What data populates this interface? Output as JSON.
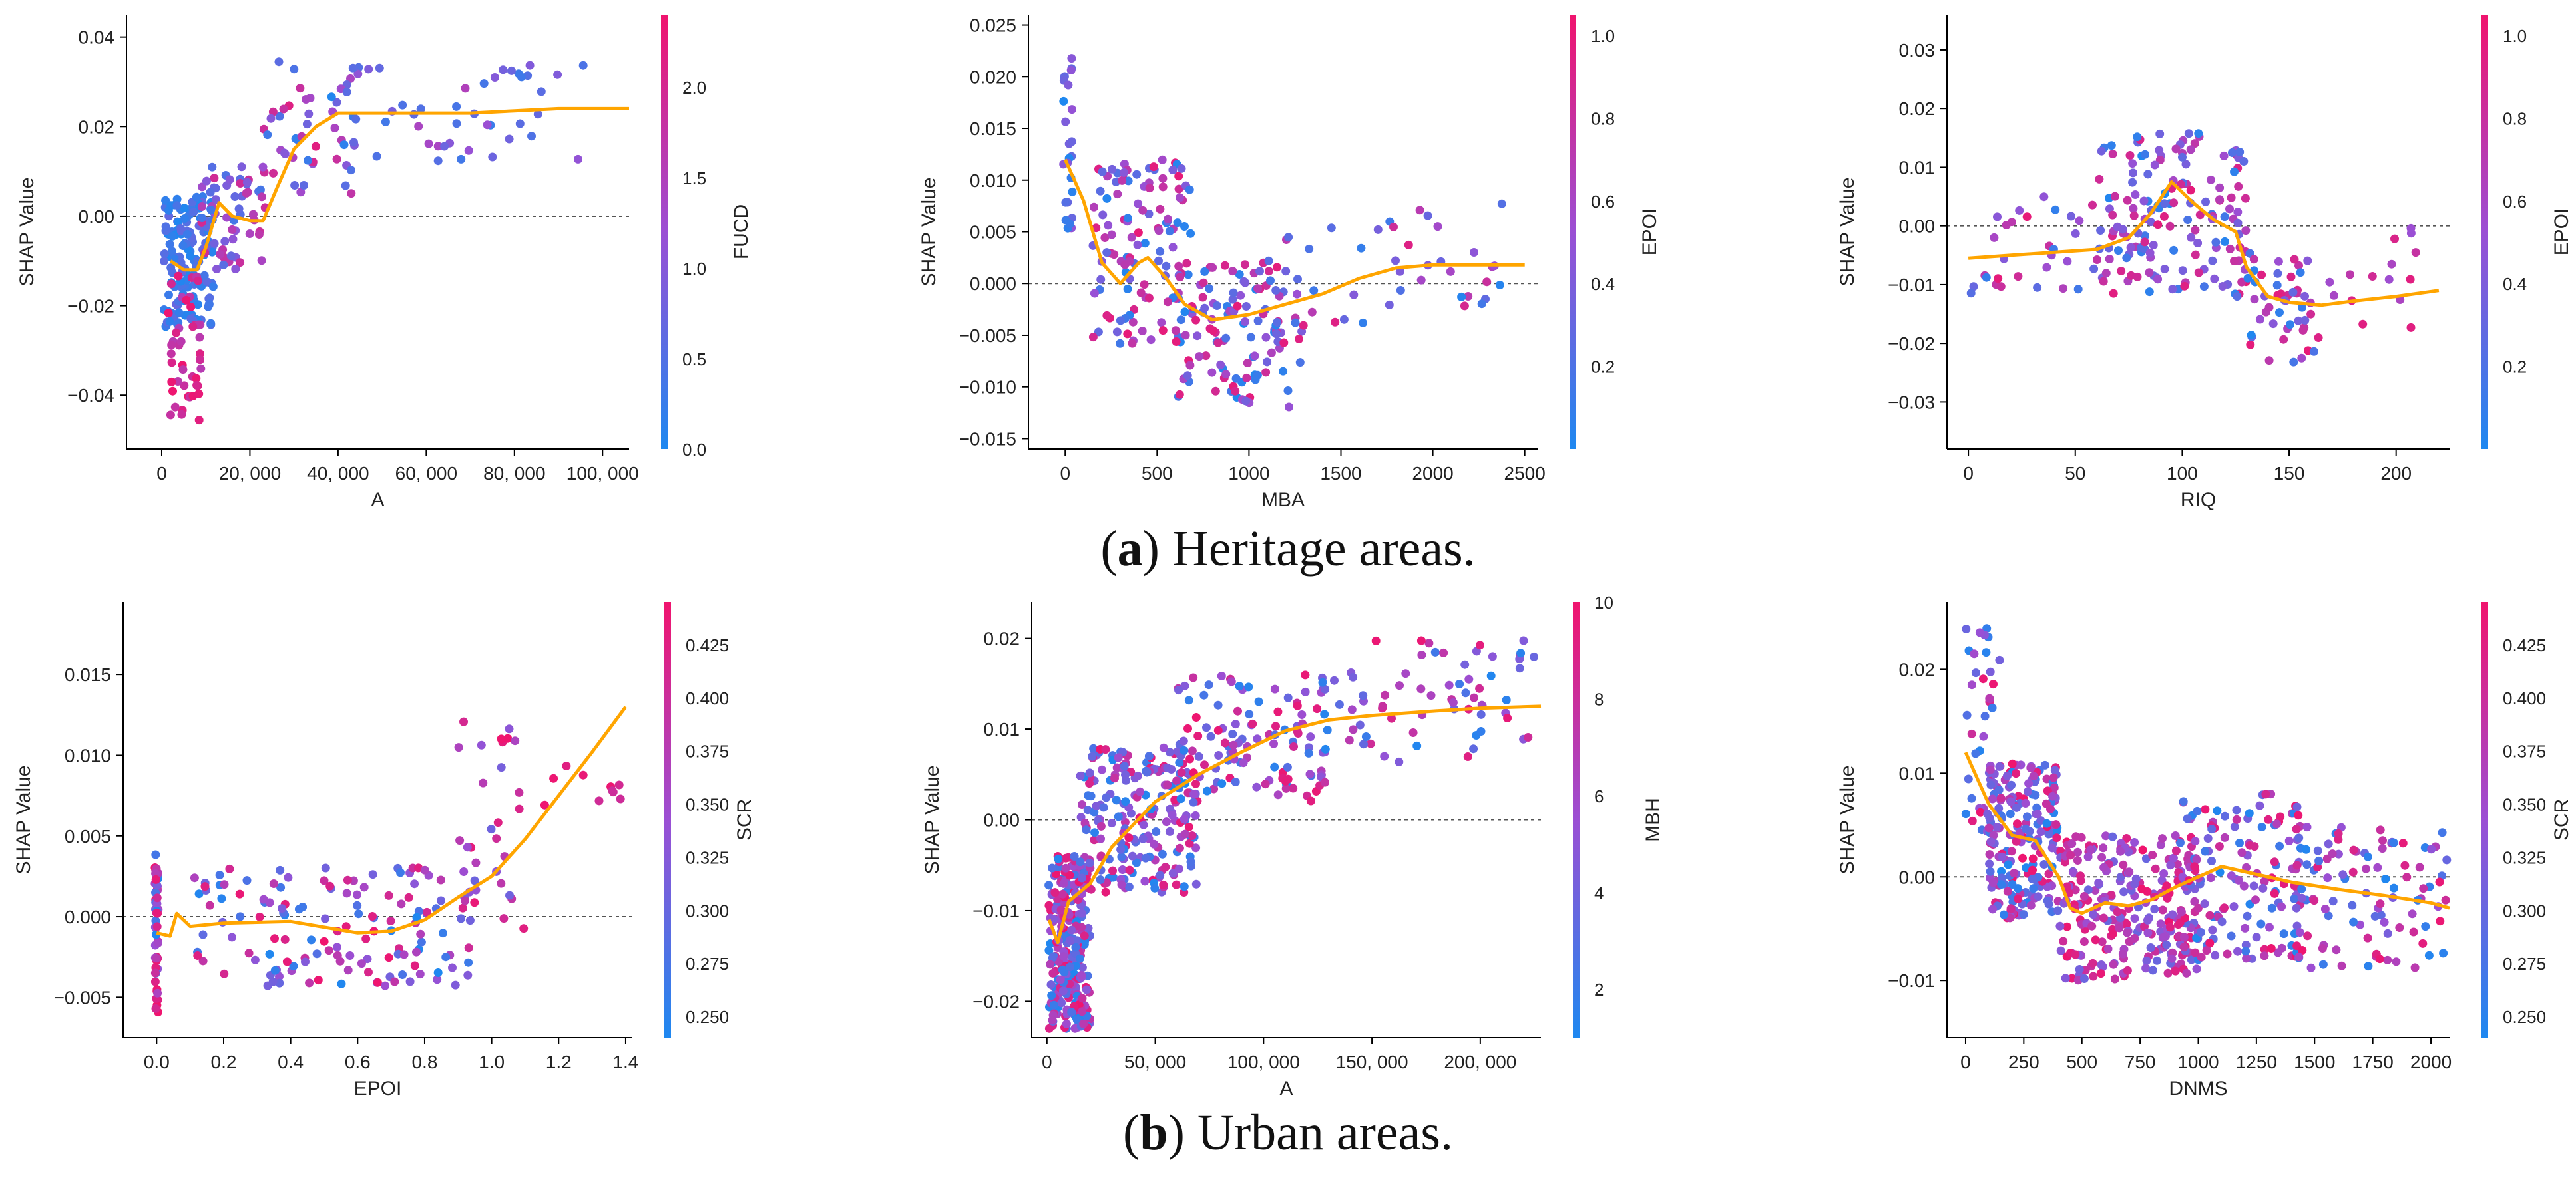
{
  "colors": {
    "low": "#1e88f0",
    "mid": "#9b4fd4",
    "high": "#f0146e",
    "trend": "#ffa500",
    "axis": "#000000",
    "zeroline": "#555555"
  },
  "captions": {
    "a": {
      "label": "a",
      "text": "Heritage areas."
    },
    "b": {
      "label": "b",
      "text": "Urban areas."
    }
  },
  "chart_data": [
    {
      "type": "scatter",
      "id": "heritage-A",
      "group": "a",
      "xlabel": "A",
      "ylabel": "SHAP Value",
      "colorbar_label": "FUCD",
      "xlim": [
        -8000,
        106000
      ],
      "ylim": [
        -0.052,
        0.045
      ],
      "xticks": [
        0,
        20000,
        40000,
        60000,
        80000,
        100000
      ],
      "xtick_labels": [
        "0",
        "20, 000",
        "40, 000",
        "60, 000",
        "80, 000",
        "100, 000"
      ],
      "yticks": [
        -0.04,
        -0.02,
        0.0,
        0.02,
        0.04
      ],
      "ytick_labels": [
        "−0.04",
        "−0.02",
        "0.00",
        "0.02",
        "0.04"
      ],
      "cbar_range": [
        0,
        2.4
      ],
      "cbar_ticks": [
        0.0,
        0.5,
        1.0,
        1.5,
        2.0
      ],
      "cbar_tick_labels": [
        "0.0",
        "0.5",
        "1.0",
        "1.5",
        "2.0"
      ],
      "trend": [
        [
          2000,
          -0.01
        ],
        [
          5000,
          -0.012
        ],
        [
          8000,
          -0.012
        ],
        [
          10000,
          -0.007
        ],
        [
          13000,
          0.003
        ],
        [
          16000,
          0.0
        ],
        [
          20000,
          -0.001
        ],
        [
          23000,
          -0.001
        ],
        [
          26000,
          0.006
        ],
        [
          30000,
          0.015
        ],
        [
          35000,
          0.02
        ],
        [
          40000,
          0.023
        ],
        [
          50000,
          0.023
        ],
        [
          60000,
          0.023
        ],
        [
          70000,
          0.023
        ],
        [
          80000,
          0.0235
        ],
        [
          90000,
          0.024
        ],
        [
          100000,
          0.024
        ],
        [
          106000,
          0.024
        ]
      ],
      "clusters": [
        {
          "n": 150,
          "x": [
            500,
            12000
          ],
          "y": [
            -0.025,
            0.005
          ],
          "c": [
            0.0,
            0.7
          ]
        },
        {
          "n": 45,
          "x": [
            1500,
            9000
          ],
          "y": [
            -0.046,
            -0.012
          ],
          "c": [
            1.5,
            2.4
          ]
        },
        {
          "n": 60,
          "x": [
            9000,
            24000
          ],
          "y": [
            -0.012,
            0.012
          ],
          "c": [
            0.3,
            2.0
          ]
        },
        {
          "n": 45,
          "x": [
            23000,
            44000
          ],
          "y": [
            0.005,
            0.035
          ],
          "c": [
            0.0,
            2.2
          ]
        },
        {
          "n": 45,
          "x": [
            42000,
            96000
          ],
          "y": [
            0.012,
            0.034
          ],
          "c": [
            0.0,
            1.5
          ]
        }
      ]
    },
    {
      "type": "scatter",
      "id": "heritage-MBA",
      "group": "a",
      "xlabel": "MBA",
      "ylabel": "SHAP Value",
      "colorbar_label": "EPOI",
      "xlim": [
        -200,
        2570
      ],
      "ylim": [
        -0.016,
        0.026
      ],
      "xticks": [
        0,
        500,
        1000,
        1500,
        2000,
        2500
      ],
      "xtick_labels": [
        "0",
        "500",
        "1000",
        "1500",
        "2000",
        "2500"
      ],
      "yticks": [
        -0.015,
        -0.01,
        -0.005,
        0.0,
        0.005,
        0.01,
        0.015,
        0.02,
        0.025
      ],
      "ytick_labels": [
        "−0.015",
        "−0.010",
        "−0.005",
        "0.000",
        "0.005",
        "0.010",
        "0.015",
        "0.020",
        "0.025"
      ],
      "cbar_range": [
        0,
        1.05
      ],
      "cbar_ticks": [
        0.2,
        0.4,
        0.6,
        0.8,
        1.0
      ],
      "cbar_tick_labels": [
        "0.2",
        "0.4",
        "0.6",
        "0.8",
        "1.0"
      ],
      "trend": [
        [
          0,
          0.012
        ],
        [
          100,
          0.008
        ],
        [
          200,
          0.002
        ],
        [
          300,
          0.0
        ],
        [
          400,
          0.002
        ],
        [
          450,
          0.0025
        ],
        [
          550,
          0.0005
        ],
        [
          650,
          -0.002
        ],
        [
          800,
          -0.0035
        ],
        [
          1000,
          -0.003
        ],
        [
          1200,
          -0.002
        ],
        [
          1400,
          -0.001
        ],
        [
          1600,
          0.0005
        ],
        [
          1800,
          0.0015
        ],
        [
          2000,
          0.0018
        ],
        [
          2200,
          0.0018
        ],
        [
          2500,
          0.0018
        ]
      ],
      "clusters": [
        {
          "n": 25,
          "x": [
            -10,
            40
          ],
          "y": [
            0.005,
            0.022
          ],
          "c": [
            0.0,
            0.5
          ]
        },
        {
          "n": 120,
          "x": [
            150,
            700
          ],
          "y": [
            -0.006,
            0.012
          ],
          "c": [
            0.0,
            1.0
          ]
        },
        {
          "n": 120,
          "x": [
            600,
            1300
          ],
          "y": [
            -0.012,
            0.002
          ],
          "c": [
            0.0,
            1.0
          ]
        },
        {
          "n": 40,
          "x": [
            1100,
            2400
          ],
          "y": [
            -0.004,
            0.008
          ],
          "c": [
            0.0,
            1.0
          ]
        }
      ]
    },
    {
      "type": "scatter",
      "id": "heritage-RIQ",
      "group": "a",
      "xlabel": "RIQ",
      "ylabel": "SHAP Value",
      "colorbar_label": "EPOI",
      "xlim": [
        -10,
        225
      ],
      "ylim": [
        -0.038,
        0.036
      ],
      "xticks": [
        0,
        50,
        100,
        150,
        200
      ],
      "xtick_labels": [
        "0",
        "50",
        "100",
        "150",
        "200"
      ],
      "yticks": [
        -0.03,
        -0.02,
        -0.01,
        0.0,
        0.01,
        0.02,
        0.03
      ],
      "ytick_labels": [
        "−0.03",
        "−0.02",
        "−0.01",
        "0.00",
        "0.01",
        "0.02",
        "0.03"
      ],
      "cbar_range": [
        0,
        1.05
      ],
      "cbar_ticks": [
        0.2,
        0.4,
        0.6,
        0.8,
        1.0
      ],
      "cbar_tick_labels": [
        "0.2",
        "0.4",
        "0.6",
        "0.8",
        "1.0"
      ],
      "trend": [
        [
          0,
          -0.0055
        ],
        [
          20,
          -0.005
        ],
        [
          40,
          -0.0045
        ],
        [
          60,
          -0.004
        ],
        [
          75,
          -0.002
        ],
        [
          85,
          0.002
        ],
        [
          95,
          0.0075
        ],
        [
          105,
          0.004
        ],
        [
          115,
          0.001
        ],
        [
          125,
          -0.001
        ],
        [
          130,
          -0.007
        ],
        [
          140,
          -0.012
        ],
        [
          150,
          -0.013
        ],
        [
          165,
          -0.0135
        ],
        [
          180,
          -0.0128
        ],
        [
          200,
          -0.012
        ],
        [
          220,
          -0.011
        ]
      ],
      "clusters": [
        {
          "n": 30,
          "x": [
            0,
            60
          ],
          "y": [
            -0.012,
            0.006
          ],
          "c": [
            0.0,
            1.0
          ]
        },
        {
          "n": 160,
          "x": [
            60,
            130
          ],
          "y": [
            -0.012,
            0.016
          ],
          "c": [
            0.0,
            1.0
          ]
        },
        {
          "n": 50,
          "x": [
            130,
            165
          ],
          "y": [
            -0.024,
            -0.002
          ],
          "c": [
            0.0,
            1.0
          ]
        },
        {
          "n": 15,
          "x": [
            165,
            215
          ],
          "y": [
            -0.02,
            0.0
          ],
          "c": [
            0.5,
            1.0
          ]
        }
      ]
    },
    {
      "type": "scatter",
      "id": "urban-EPOI",
      "group": "b",
      "xlabel": "EPOI",
      "ylabel": "SHAP Value",
      "colorbar_label": "SCR",
      "xlim": [
        -0.1,
        1.42
      ],
      "ylim": [
        -0.0075,
        0.0195
      ],
      "xticks": [
        0.0,
        0.2,
        0.4,
        0.6,
        0.8,
        1.0,
        1.2,
        1.4
      ],
      "xtick_labels": [
        "0.0",
        "0.2",
        "0.4",
        "0.6",
        "0.8",
        "1.0",
        "1.2",
        "1.4"
      ],
      "yticks": [
        -0.005,
        0.0,
        0.005,
        0.01,
        0.015
      ],
      "ytick_labels": [
        "−0.005",
        "0.000",
        "0.005",
        "0.010",
        "0.015"
      ],
      "cbar_range": [
        0.24,
        0.445
      ],
      "cbar_ticks": [
        0.25,
        0.275,
        0.3,
        0.325,
        0.35,
        0.375,
        0.4,
        0.425
      ],
      "cbar_tick_labels": [
        "0.250",
        "0.275",
        "0.300",
        "0.325",
        "0.350",
        "0.375",
        "0.400",
        "0.425"
      ],
      "trend": [
        [
          0.0,
          -0.001
        ],
        [
          0.04,
          -0.0012
        ],
        [
          0.06,
          0.0002
        ],
        [
          0.1,
          -0.0006
        ],
        [
          0.2,
          -0.0004
        ],
        [
          0.4,
          -0.0003
        ],
        [
          0.6,
          -0.001
        ],
        [
          0.7,
          -0.0009
        ],
        [
          0.8,
          -0.0002
        ],
        [
          0.9,
          0.0012
        ],
        [
          1.0,
          0.0025
        ],
        [
          1.1,
          0.0048
        ],
        [
          1.2,
          0.0075
        ],
        [
          1.3,
          0.0102
        ],
        [
          1.4,
          0.013
        ]
      ],
      "clusters": [
        {
          "n": 50,
          "x": [
            -0.005,
            0.005
          ],
          "y": [
            -0.006,
            0.004
          ],
          "c": [
            0.24,
            0.445
          ]
        },
        {
          "n": 140,
          "x": [
            0.1,
            0.95
          ],
          "y": [
            -0.0045,
            0.0032
          ],
          "c": [
            0.24,
            0.445
          ]
        },
        {
          "n": 30,
          "x": [
            0.9,
            1.1
          ],
          "y": [
            -0.002,
            0.0125
          ],
          "c": [
            0.3,
            0.445
          ]
        },
        {
          "n": 10,
          "x": [
            1.15,
            1.4
          ],
          "y": [
            0.006,
            0.0105
          ],
          "c": [
            0.4,
            0.445
          ]
        }
      ]
    },
    {
      "type": "scatter",
      "id": "urban-A",
      "group": "b",
      "xlabel": "A",
      "ylabel": "SHAP Value",
      "colorbar_label": "MBH",
      "xlim": [
        -7000,
        228000
      ],
      "ylim": [
        -0.024,
        0.024
      ],
      "xticks": [
        0,
        50000,
        100000,
        150000,
        200000
      ],
      "xtick_labels": [
        "0",
        "50, 000",
        "100, 000",
        "150, 000",
        "200, 000"
      ],
      "yticks": [
        -0.02,
        -0.01,
        0.0,
        0.01,
        0.02
      ],
      "ytick_labels": [
        "−0.02",
        "−0.01",
        "0.00",
        "0.01",
        "0.02"
      ],
      "cbar_range": [
        1,
        10
      ],
      "cbar_ticks": [
        2,
        4,
        6,
        8,
        10
      ],
      "cbar_tick_labels": [
        "2",
        "4",
        "6",
        "8",
        "10"
      ],
      "trend": [
        [
          1000,
          -0.011
        ],
        [
          5000,
          -0.0135
        ],
        [
          10000,
          -0.009
        ],
        [
          20000,
          -0.007
        ],
        [
          30000,
          -0.003
        ],
        [
          40000,
          -0.0005
        ],
        [
          50000,
          0.002
        ],
        [
          70000,
          0.005
        ],
        [
          90000,
          0.0075
        ],
        [
          110000,
          0.0098
        ],
        [
          130000,
          0.011
        ],
        [
          150000,
          0.0115
        ],
        [
          180000,
          0.012
        ],
        [
          200000,
          0.0123
        ],
        [
          228000,
          0.0125
        ]
      ],
      "clusters": [
        {
          "n": 250,
          "x": [
            500,
            20000
          ],
          "y": [
            -0.023,
            -0.004
          ],
          "c": [
            1,
            10
          ]
        },
        {
          "n": 220,
          "x": [
            15000,
            70000
          ],
          "y": [
            -0.008,
            0.008
          ],
          "c": [
            1,
            10
          ]
        },
        {
          "n": 110,
          "x": [
            60000,
            130000
          ],
          "y": [
            0.002,
            0.016
          ],
          "c": [
            1,
            10
          ]
        },
        {
          "n": 70,
          "x": [
            120000,
            225000
          ],
          "y": [
            0.006,
            0.02
          ],
          "c": [
            1,
            10
          ]
        }
      ]
    },
    {
      "type": "scatter",
      "id": "urban-DNMS",
      "group": "b",
      "xlabel": "DNMS",
      "ylabel": "SHAP Value",
      "colorbar_label": "SCR",
      "xlim": [
        -80,
        2080
      ],
      "ylim": [
        -0.0155,
        0.0265
      ],
      "xticks": [
        0,
        250,
        500,
        750,
        1000,
        1250,
        1500,
        1750,
        2000
      ],
      "xtick_labels": [
        "0",
        "250",
        "500",
        "750",
        "1000",
        "1250",
        "1500",
        "1750",
        "2000"
      ],
      "yticks": [
        -0.01,
        0.0,
        0.01,
        0.02
      ],
      "ytick_labels": [
        "−0.01",
        "0.00",
        "0.01",
        "0.02"
      ],
      "cbar_range": [
        0.24,
        0.445
      ],
      "cbar_ticks": [
        0.25,
        0.275,
        0.3,
        0.325,
        0.35,
        0.375,
        0.4,
        0.425
      ],
      "cbar_tick_labels": [
        "0.250",
        "0.275",
        "0.300",
        "0.325",
        "0.350",
        "0.375",
        "0.400",
        "0.425"
      ],
      "trend": [
        [
          0,
          0.012
        ],
        [
          50,
          0.0095
        ],
        [
          100,
          0.007
        ],
        [
          150,
          0.0055
        ],
        [
          200,
          0.004
        ],
        [
          300,
          0.0035
        ],
        [
          400,
          0.0
        ],
        [
          450,
          -0.003
        ],
        [
          500,
          -0.0035
        ],
        [
          600,
          -0.0025
        ],
        [
          700,
          -0.0028
        ],
        [
          800,
          -0.0022
        ],
        [
          900,
          -0.001
        ],
        [
          1000,
          0.0
        ],
        [
          1100,
          0.001
        ],
        [
          1200,
          0.0005
        ],
        [
          1400,
          -0.0005
        ],
        [
          1600,
          -0.0012
        ],
        [
          1800,
          -0.0018
        ],
        [
          2000,
          -0.0025
        ],
        [
          2080,
          -0.003
        ]
      ],
      "clusters": [
        {
          "n": 40,
          "x": [
            0,
            150
          ],
          "y": [
            0.002,
            0.024
          ],
          "c": [
            0.24,
            0.445
          ]
        },
        {
          "n": 200,
          "x": [
            100,
            400
          ],
          "y": [
            -0.004,
            0.011
          ],
          "c": [
            0.24,
            0.445
          ]
        },
        {
          "n": 250,
          "x": [
            400,
            1000
          ],
          "y": [
            -0.01,
            0.004
          ],
          "c": [
            0.3,
            0.445
          ]
        },
        {
          "n": 150,
          "x": [
            900,
            1450
          ],
          "y": [
            -0.008,
            0.008
          ],
          "c": [
            0.24,
            0.445
          ]
        },
        {
          "n": 100,
          "x": [
            1400,
            2070
          ],
          "y": [
            -0.009,
            0.005
          ],
          "c": [
            0.24,
            0.445
          ]
        }
      ]
    }
  ]
}
